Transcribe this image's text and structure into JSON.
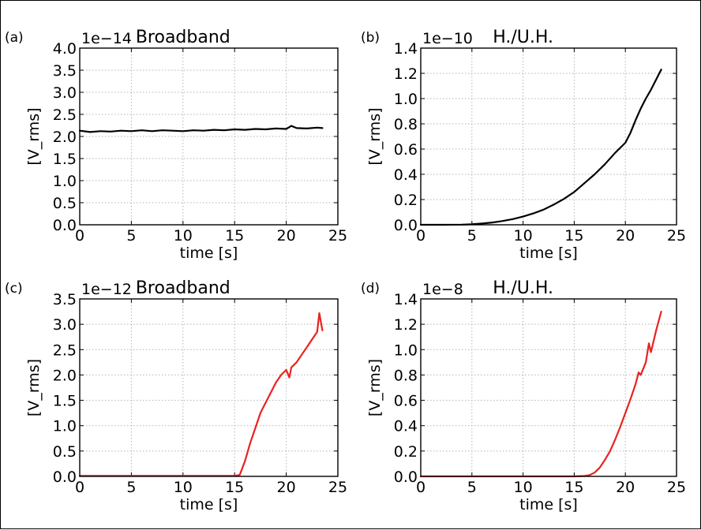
{
  "chart_data": [
    {
      "type": "line",
      "panel_label": "(a)",
      "title": "Broadband",
      "scale_label": "1e−14",
      "xlabel": "time [s]",
      "ylabel": "[V_rms]",
      "xlim": [
        0,
        25
      ],
      "ylim": [
        0,
        4.0
      ],
      "xticks": [
        0,
        5,
        10,
        15,
        20,
        25
      ],
      "xtick_labels": [
        "0",
        "5",
        "10",
        "15",
        "20",
        "25"
      ],
      "yticks": [
        0,
        0.5,
        1.0,
        1.5,
        2.0,
        2.5,
        3.0,
        3.5,
        4.0
      ],
      "ytick_labels": [
        "0.0",
        "0.5",
        "1.0",
        "1.5",
        "2.0",
        "2.5",
        "3.0",
        "3.5",
        "4.0"
      ],
      "grid": true,
      "series": [
        {
          "color": "#000000",
          "x": [
            0,
            1,
            2,
            3,
            4,
            5,
            6,
            7,
            8,
            9,
            10,
            11,
            12,
            13,
            14,
            15,
            16,
            17,
            18,
            19,
            20,
            20.5,
            21,
            22,
            23,
            23.5
          ],
          "y": [
            2.13,
            2.1,
            2.12,
            2.11,
            2.13,
            2.12,
            2.14,
            2.12,
            2.14,
            2.13,
            2.12,
            2.14,
            2.13,
            2.15,
            2.14,
            2.16,
            2.15,
            2.17,
            2.16,
            2.18,
            2.17,
            2.24,
            2.19,
            2.18,
            2.2,
            2.19
          ]
        }
      ]
    },
    {
      "type": "line",
      "panel_label": "(b)",
      "title": "H./U.H.",
      "scale_label": "1e−10",
      "xlabel": "time [s]",
      "ylabel": "[V_rms]",
      "xlim": [
        0,
        25
      ],
      "ylim": [
        0,
        1.4
      ],
      "xticks": [
        0,
        5,
        10,
        15,
        20,
        25
      ],
      "xtick_labels": [
        "0",
        "5",
        "10",
        "15",
        "20",
        "25"
      ],
      "yticks": [
        0,
        0.2,
        0.4,
        0.6,
        0.8,
        1.0,
        1.2,
        1.4
      ],
      "ytick_labels": [
        "0.0",
        "0.2",
        "0.4",
        "0.6",
        "0.8",
        "1.0",
        "1.2",
        "1.4"
      ],
      "grid": true,
      "series": [
        {
          "color": "#000000",
          "x": [
            0,
            2,
            4,
            5,
            6,
            7,
            8,
            9,
            10,
            11,
            12,
            13,
            14,
            15,
            16,
            17,
            18,
            19,
            20,
            20.5,
            21,
            21.5,
            22,
            22.5,
            23,
            23.5
          ],
          "y": [
            0.0,
            0.0,
            0.001,
            0.004,
            0.01,
            0.018,
            0.03,
            0.045,
            0.065,
            0.09,
            0.12,
            0.16,
            0.205,
            0.26,
            0.33,
            0.4,
            0.48,
            0.57,
            0.65,
            0.73,
            0.83,
            0.92,
            1.0,
            1.07,
            1.15,
            1.23
          ]
        }
      ]
    },
    {
      "type": "line",
      "panel_label": "(c)",
      "title": "Broadband",
      "scale_label": "1e−12",
      "xlabel": "time [s]",
      "ylabel": "[V_rms]",
      "xlim": [
        0,
        25
      ],
      "ylim": [
        0,
        3.5
      ],
      "xticks": [
        0,
        5,
        10,
        15,
        20,
        25
      ],
      "xtick_labels": [
        "0",
        "5",
        "10",
        "15",
        "20",
        "25"
      ],
      "yticks": [
        0,
        0.5,
        1.0,
        1.5,
        2.0,
        2.5,
        3.0,
        3.5
      ],
      "ytick_labels": [
        "0.0",
        "0.5",
        "1.0",
        "1.5",
        "2.0",
        "2.5",
        "3.0",
        "3.5"
      ],
      "grid": true,
      "series": [
        {
          "color": "#e8231f",
          "x": [
            0,
            5,
            10,
            15,
            15.5,
            16,
            16.5,
            17,
            17.5,
            18,
            18.5,
            19,
            19.5,
            20,
            20.3,
            20.5,
            21,
            21.5,
            22,
            22.5,
            23,
            23.2,
            23.5
          ],
          "y": [
            0.01,
            0.01,
            0.01,
            0.01,
            0.03,
            0.3,
            0.65,
            0.95,
            1.25,
            1.45,
            1.65,
            1.85,
            2.0,
            2.1,
            1.95,
            2.15,
            2.25,
            2.4,
            2.55,
            2.7,
            2.85,
            3.22,
            2.88
          ]
        }
      ]
    },
    {
      "type": "line",
      "panel_label": "(d)",
      "title": "H./U.H.",
      "scale_label": "1e−8",
      "xlabel": "time [s]",
      "ylabel": "[V_rms]",
      "xlim": [
        0,
        25
      ],
      "ylim": [
        0,
        1.4
      ],
      "xticks": [
        0,
        5,
        10,
        15,
        20,
        25
      ],
      "xtick_labels": [
        "0",
        "5",
        "10",
        "15",
        "20",
        "25"
      ],
      "yticks": [
        0,
        0.2,
        0.4,
        0.6,
        0.8,
        1.0,
        1.2,
        1.4
      ],
      "ytick_labels": [
        "0.0",
        "0.2",
        "0.4",
        "0.6",
        "0.8",
        "1.0",
        "1.2",
        "1.4"
      ],
      "grid": true,
      "series": [
        {
          "color": "#e8231f",
          "x": [
            0,
            5,
            10,
            15,
            16,
            16.5,
            17,
            17.5,
            18,
            18.5,
            19,
            19.5,
            20,
            20.5,
            21,
            21.3,
            21.5,
            22,
            22.3,
            22.5,
            23,
            23.5
          ],
          "y": [
            0.0,
            0.0,
            0.0,
            0.0,
            0.003,
            0.01,
            0.03,
            0.07,
            0.13,
            0.2,
            0.29,
            0.39,
            0.5,
            0.61,
            0.73,
            0.82,
            0.8,
            0.9,
            1.05,
            0.98,
            1.15,
            1.3
          ]
        }
      ]
    }
  ]
}
